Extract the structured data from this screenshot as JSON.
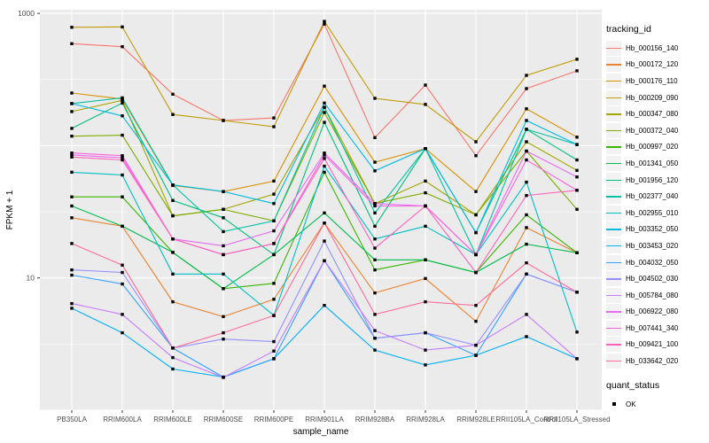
{
  "chart_data": {
    "type": "line",
    "title": "",
    "xlabel": "sample_name",
    "ylabel": "FPKM + 1",
    "y_scale": "log10",
    "ylim": [
      1,
      1122
    ],
    "y_ticks": [
      10,
      1000
    ],
    "y_tick_labels": [
      "10",
      "1000"
    ],
    "grid": "on",
    "panel_bg": "#EBEBEB",
    "grid_color": "#FFFFFF",
    "axis_text_color": "#4D4D4D",
    "tick_color": "#333333",
    "point_color": "#000000",
    "legend_title": "tracking_id",
    "legend_position": "right",
    "quant_legend": {
      "title": "quant_status",
      "items": [
        {
          "label": "OK"
        }
      ]
    },
    "categories": [
      "PB350LA",
      "RRIM600LA",
      "RRIM600LE",
      "RRIM600SE",
      "RRIM600PE",
      "RRIM901LA",
      "RRIM928BA",
      "RRIM928LA",
      "RRIM928LE",
      "RRII105LA_Control",
      "RRII105LA_Stressed"
    ],
    "series": [
      {
        "name": "Hb_000156_140",
        "color": "#F8766D",
        "values": [
          590,
          560,
          245,
          155,
          162,
          830,
          115,
          287,
          84,
          270,
          368
        ]
      },
      {
        "name": "Hb_000172_120",
        "color": "#EA8331",
        "values": [
          28.5,
          24.6,
          6.6,
          5.1,
          6.9,
          26,
          7.7,
          9.9,
          4.7,
          24,
          15.5
        ]
      },
      {
        "name": "Hb_000176_110",
        "color": "#D89000",
        "values": [
          250,
          225,
          50,
          45,
          54,
          282,
          75,
          95,
          45,
          190,
          116
        ]
      },
      {
        "name": "Hb_000209_090",
        "color": "#C09B00",
        "values": [
          785,
          790,
          172,
          155,
          139,
          870,
          228,
          205,
          107,
          340,
          450
        ]
      },
      {
        "name": "Hb_000347_080",
        "color": "#A3A500",
        "values": [
          181,
          220,
          29.5,
          33,
          43,
          195,
          36.5,
          54,
          30,
          107,
          65
        ]
      },
      {
        "name": "Hb_000372_040",
        "color": "#7CAE00",
        "values": [
          118,
          120,
          29.5,
          33,
          27,
          178,
          36.5,
          44,
          30,
          91,
          33
        ]
      },
      {
        "name": "Hb_000997_020",
        "color": "#39B600",
        "values": [
          41,
          41,
          15.6,
          8.3,
          9.1,
          63,
          11.5,
          13.7,
          11,
          30,
          15.5
        ]
      },
      {
        "name": "Hb_001341_050",
        "color": "#00BB4E",
        "values": [
          35,
          24.6,
          15.6,
          8.3,
          15,
          31,
          13.7,
          13.7,
          11,
          18,
          15.5
        ]
      },
      {
        "name": "Hb_001956_120",
        "color": "#00BF7D",
        "values": [
          135,
          210,
          38.5,
          28.5,
          15,
          150,
          24.6,
          95,
          22,
          133,
          78
        ]
      },
      {
        "name": "Hb_002377_040",
        "color": "#00C1A3",
        "values": [
          208,
          230,
          50.5,
          22.4,
          27,
          195,
          31,
          95,
          15,
          133,
          102
        ]
      },
      {
        "name": "Hb_002955_010",
        "color": "#00BFC4",
        "values": [
          63,
          60,
          10.7,
          10.7,
          5.2,
          70,
          19.7,
          24.6,
          15,
          53,
          3.9
        ]
      },
      {
        "name": "Hb_003352_050",
        "color": "#00BAE0",
        "values": [
          208,
          168,
          50.5,
          45,
          36.5,
          210,
          64.5,
          95,
          22,
          155,
          102
        ]
      },
      {
        "name": "Hb_003453_020",
        "color": "#00B0F6",
        "values": [
          5.9,
          3.85,
          2.05,
          1.78,
          2.45,
          6.2,
          2.85,
          2.2,
          2.6,
          3.6,
          2.45
        ]
      },
      {
        "name": "Hb_004032_050",
        "color": "#35A2FF",
        "values": [
          10.5,
          9,
          2.95,
          1.78,
          2.45,
          13.5,
          3.5,
          3.85,
          2.6,
          10.7,
          7.8
        ]
      },
      {
        "name": "Hb_004502_030",
        "color": "#9590FF",
        "values": [
          11.5,
          11,
          2.95,
          3.45,
          3.3,
          19,
          3.5,
          3.85,
          3.1,
          10.7,
          7.8
        ]
      },
      {
        "name": "Hb_005784_080",
        "color": "#C77CFF",
        "values": [
          6.4,
          5.3,
          2.5,
          1.77,
          2.8,
          13.5,
          4,
          2.85,
          3.1,
          5.3,
          2.45
        ]
      },
      {
        "name": "Hb_006922_080",
        "color": "#E76BF3",
        "values": [
          85,
          81,
          19.7,
          17.5,
          22.7,
          88,
          36.5,
          35,
          15,
          91,
          58
        ]
      },
      {
        "name": "Hb_007441_340",
        "color": "#FA62DB",
        "values": [
          88,
          84,
          19.7,
          15,
          18.2,
          85,
          35,
          35,
          15,
          78,
          46
        ]
      },
      {
        "name": "Hb_009421_100",
        "color": "#FF62BC",
        "values": [
          82,
          78,
          19.7,
          15,
          18.2,
          80,
          16.8,
          35,
          11,
          42,
          46
        ]
      },
      {
        "name": "Hb_033642_020",
        "color": "#FF6A98",
        "values": [
          18.2,
          12.5,
          2.95,
          3.85,
          5.2,
          26,
          5.3,
          6.6,
          6.2,
          13,
          7.8
        ]
      }
    ]
  }
}
